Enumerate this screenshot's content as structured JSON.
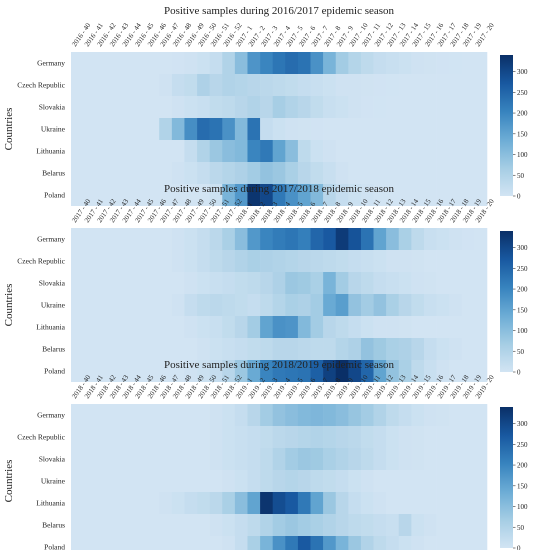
{
  "figure": {
    "ylabel": "Countries",
    "colorbar_ticks": [
      0,
      50,
      100,
      150,
      200,
      250,
      300
    ]
  },
  "colors": {
    "low": "#d2e4f3",
    "high": "#0b3068"
  },
  "chart_data": [
    {
      "type": "heatmap",
      "title": "Positive samples during 2016/2017 epidemic season",
      "ylabel": "Countries",
      "rows": [
        "Germany",
        "Czech Republic",
        "Slovakia",
        "Ukraine",
        "Lithuania",
        "Belarus",
        "Poland"
      ],
      "columns": [
        "2016 - 40",
        "2016 - 41",
        "2016 - 42",
        "2016 - 43",
        "2016 - 44",
        "2016 - 45",
        "2016 - 46",
        "2016 - 47",
        "2016 - 48",
        "2016 - 49",
        "2016 - 50",
        "2016 - 51",
        "2016 - 52",
        "2017 - 1",
        "2017 - 2",
        "2017 - 3",
        "2017 - 4",
        "2017 - 5",
        "2017 - 6",
        "2017 - 7",
        "2017 - 8",
        "2017 - 9",
        "2017 - 10",
        "2017 - 11",
        "2017 - 12",
        "2017 - 13",
        "2017 - 14",
        "2017 - 15",
        "2017 - 16",
        "2017 - 17",
        "2017 - 18",
        "2017 - 19",
        "2017 - 20"
      ],
      "values": [
        [
          0,
          0,
          0,
          0,
          0,
          0,
          0,
          0,
          2,
          5,
          10,
          20,
          50,
          100,
          175,
          200,
          225,
          240,
          230,
          180,
          120,
          70,
          45,
          30,
          20,
          15,
          10,
          5,
          3,
          2,
          1,
          0,
          0
        ],
        [
          0,
          0,
          0,
          0,
          0,
          0,
          0,
          5,
          20,
          25,
          55,
          40,
          50,
          45,
          40,
          35,
          30,
          25,
          20,
          15,
          10,
          5,
          5,
          3,
          2,
          1,
          0,
          0,
          0,
          0,
          0,
          0,
          0
        ],
        [
          0,
          0,
          0,
          0,
          0,
          0,
          0,
          0,
          5,
          10,
          15,
          25,
          30,
          40,
          50,
          40,
          65,
          50,
          40,
          25,
          15,
          10,
          5,
          2,
          1,
          0,
          0,
          0,
          0,
          0,
          0,
          0,
          0
        ],
        [
          0,
          0,
          0,
          0,
          0,
          0,
          0,
          50,
          110,
          185,
          240,
          230,
          180,
          110,
          230,
          20,
          10,
          5,
          3,
          2,
          0,
          0,
          0,
          0,
          0,
          0,
          0,
          0,
          0,
          0,
          0,
          0,
          0
        ],
        [
          0,
          0,
          0,
          0,
          0,
          0,
          0,
          0,
          0,
          20,
          50,
          80,
          100,
          110,
          200,
          220,
          150,
          100,
          30,
          10,
          5,
          0,
          0,
          0,
          0,
          0,
          0,
          0,
          0,
          0,
          0,
          0,
          0
        ],
        [
          0,
          0,
          0,
          0,
          0,
          0,
          0,
          0,
          5,
          10,
          20,
          35,
          45,
          55,
          70,
          90,
          80,
          60,
          40,
          25,
          15,
          5,
          0,
          0,
          0,
          0,
          0,
          0,
          0,
          0,
          0,
          0,
          0
        ],
        [
          0,
          0,
          0,
          0,
          0,
          0,
          0,
          0,
          0,
          0,
          0,
          10,
          120,
          170,
          330,
          300,
          220,
          180,
          150,
          110,
          40,
          20,
          10,
          5,
          0,
          0,
          0,
          0,
          0,
          0,
          0,
          0,
          0
        ]
      ],
      "vmin": 0,
      "vmax": 340,
      "colorbar_ticks": [
        0,
        50,
        100,
        150,
        200,
        250,
        300
      ]
    },
    {
      "type": "heatmap",
      "title": "Positive samples during 2017/2018 epidemic season",
      "ylabel": "Countries",
      "rows": [
        "Germany",
        "Czech Republic",
        "Slovakia",
        "Ukraine",
        "Lithuania",
        "Belarus",
        "Poland"
      ],
      "columns": [
        "2017 - 40",
        "2017 - 41",
        "2017 - 42",
        "2017 - 43",
        "2017 - 44",
        "2017 - 45",
        "2017 - 46",
        "2017 - 47",
        "2017 - 48",
        "2017 - 49",
        "2017 - 50",
        "2017 - 51",
        "2017 - 52",
        "2018 - 1",
        "2018 - 2",
        "2018 - 3",
        "2018 - 4",
        "2018 - 5",
        "2018 - 6",
        "2018 - 7",
        "2018 - 8",
        "2018 - 9",
        "2018 - 10",
        "2018 - 11",
        "2018 - 12",
        "2018 - 13",
        "2018 - 14",
        "2018 - 15",
        "2018 - 16",
        "2018 - 17",
        "2018 - 18",
        "2018 - 19",
        "2018 - 20"
      ],
      "values": [
        [
          0,
          0,
          0,
          0,
          0,
          0,
          0,
          0,
          5,
          10,
          20,
          35,
          60,
          100,
          170,
          200,
          215,
          225,
          210,
          250,
          270,
          320,
          280,
          230,
          150,
          100,
          60,
          30,
          15,
          10,
          5,
          2,
          0
        ],
        [
          0,
          0,
          0,
          0,
          0,
          0,
          0,
          0,
          5,
          10,
          20,
          30,
          40,
          50,
          60,
          55,
          50,
          45,
          40,
          35,
          30,
          25,
          20,
          15,
          10,
          5,
          5,
          3,
          0,
          0,
          0,
          0,
          0
        ],
        [
          0,
          0,
          0,
          0,
          0,
          0,
          0,
          0,
          0,
          5,
          10,
          15,
          20,
          25,
          30,
          40,
          55,
          80,
          75,
          60,
          120,
          70,
          40,
          30,
          20,
          15,
          10,
          5,
          3,
          0,
          0,
          0,
          0
        ],
        [
          0,
          0,
          0,
          0,
          0,
          0,
          0,
          0,
          5,
          20,
          30,
          35,
          30,
          25,
          20,
          30,
          45,
          60,
          55,
          70,
          140,
          160,
          90,
          70,
          90,
          60,
          40,
          25,
          15,
          10,
          5,
          0,
          0
        ],
        [
          0,
          0,
          0,
          0,
          0,
          0,
          0,
          0,
          0,
          5,
          10,
          15,
          25,
          40,
          70,
          150,
          180,
          175,
          110,
          70,
          40,
          30,
          20,
          10,
          5,
          5,
          3,
          0,
          0,
          0,
          0,
          0,
          0
        ],
        [
          0,
          0,
          0,
          0,
          0,
          0,
          0,
          0,
          0,
          0,
          5,
          10,
          15,
          20,
          25,
          30,
          40,
          40,
          35,
          30,
          30,
          45,
          55,
          90,
          75,
          60,
          55,
          40,
          20,
          10,
          5,
          0,
          0
        ],
        [
          0,
          0,
          0,
          0,
          0,
          0,
          0,
          0,
          0,
          5,
          10,
          20,
          40,
          80,
          140,
          200,
          220,
          225,
          230,
          260,
          310,
          340,
          300,
          250,
          150,
          90,
          60,
          30,
          15,
          5,
          0,
          0,
          0
        ]
      ],
      "vmin": 0,
      "vmax": 340,
      "colorbar_ticks": [
        0,
        50,
        100,
        150,
        200,
        250,
        300
      ]
    },
    {
      "type": "heatmap",
      "title": "Positive samples during 2018/2019 epidemic season",
      "ylabel": "Countries",
      "rows": [
        "Germany",
        "Czech Republic",
        "Slovakia",
        "Ukraine",
        "Lithuania",
        "Belarus",
        "Poland"
      ],
      "columns": [
        "2018 - 40",
        "2018 - 41",
        "2018 - 42",
        "2018 - 43",
        "2018 - 44",
        "2018 - 45",
        "2018 - 46",
        "2018 - 47",
        "2018 - 48",
        "2018 - 49",
        "2018 - 50",
        "2018 - 51",
        "2018 - 52",
        "2019 - 1",
        "2019 - 2",
        "2019 - 3",
        "2019 - 4",
        "2019 - 5",
        "2019 - 6",
        "2019 - 7",
        "2019 - 8",
        "2019 - 9",
        "2019 - 10",
        "2019 - 11",
        "2019 - 12",
        "2019 - 13",
        "2019 - 14",
        "2019 - 15",
        "2019 - 16",
        "2019 - 17",
        "2019 - 18",
        "2019 - 19",
        "2019 - 20"
      ],
      "values": [
        [
          0,
          0,
          0,
          0,
          0,
          0,
          0,
          0,
          0,
          0,
          0,
          5,
          10,
          20,
          40,
          70,
          90,
          100,
          110,
          115,
          110,
          100,
          85,
          70,
          50,
          30,
          20,
          10,
          5,
          3,
          0,
          0,
          0
        ],
        [
          0,
          0,
          0,
          0,
          0,
          0,
          0,
          0,
          0,
          0,
          0,
          5,
          10,
          15,
          20,
          25,
          35,
          40,
          45,
          50,
          45,
          40,
          35,
          25,
          20,
          10,
          5,
          3,
          0,
          0,
          0,
          0,
          0
        ],
        [
          0,
          0,
          0,
          0,
          0,
          0,
          0,
          0,
          0,
          0,
          0,
          5,
          10,
          15,
          20,
          30,
          50,
          70,
          80,
          75,
          60,
          50,
          40,
          30,
          20,
          10,
          5,
          3,
          0,
          0,
          0,
          0,
          0
        ],
        [
          0,
          0,
          0,
          0,
          0,
          0,
          0,
          0,
          0,
          0,
          0,
          0,
          5,
          10,
          20,
          30,
          40,
          45,
          40,
          30,
          25,
          20,
          10,
          5,
          0,
          0,
          0,
          0,
          0,
          0,
          0,
          0,
          0
        ],
        [
          0,
          0,
          0,
          0,
          0,
          0,
          0,
          5,
          10,
          20,
          25,
          35,
          60,
          100,
          150,
          330,
          290,
          270,
          220,
          150,
          80,
          40,
          20,
          10,
          5,
          0,
          0,
          0,
          0,
          0,
          0,
          0,
          0
        ],
        [
          0,
          0,
          0,
          0,
          0,
          0,
          0,
          0,
          0,
          0,
          0,
          5,
          10,
          20,
          30,
          50,
          70,
          80,
          70,
          60,
          50,
          40,
          30,
          25,
          20,
          15,
          40,
          10,
          5,
          0,
          0,
          0,
          0
        ],
        [
          0,
          0,
          0,
          0,
          0,
          0,
          0,
          0,
          0,
          0,
          0,
          0,
          5,
          20,
          60,
          120,
          180,
          220,
          270,
          230,
          170,
          120,
          80,
          50,
          30,
          20,
          10,
          5,
          0,
          0,
          0,
          0,
          0
        ]
      ],
      "vmin": 0,
      "vmax": 340,
      "colorbar_ticks": [
        0,
        50,
        100,
        150,
        200,
        250,
        300
      ]
    }
  ]
}
